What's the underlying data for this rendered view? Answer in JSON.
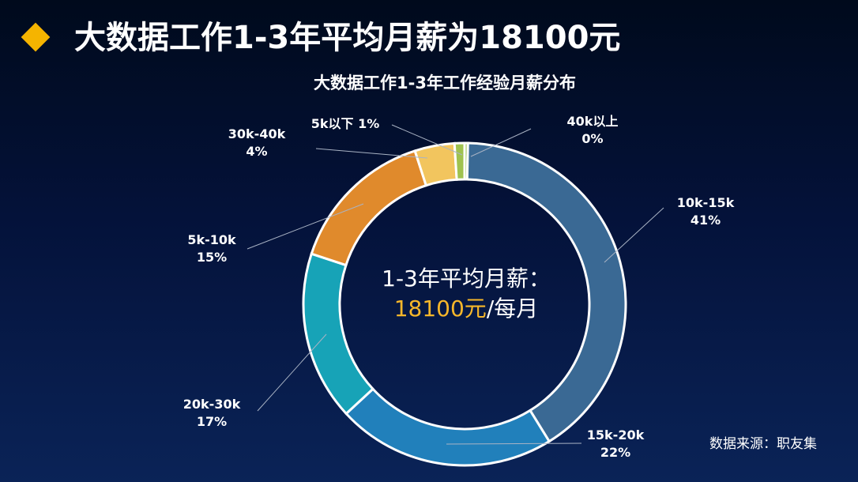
{
  "slide": {
    "title": "大数据工作1-3年平均月薪为18100元",
    "source": "数据来源：职友集"
  },
  "center": {
    "line1": "1-3年平均月薪：",
    "value": "18100元",
    "suffix": "/每月"
  },
  "colors": {
    "background": "#051540",
    "bullet": "#f5b400",
    "center_value": "#f7b72a"
  },
  "chart_data": {
    "type": "pie",
    "variant": "donut",
    "title": "大数据工作1-3年工作经验月薪分布",
    "legend": "none",
    "start_angle_deg": 0,
    "direction": "clockwise",
    "series": [
      {
        "label": "40k以上",
        "value": 0,
        "percent_label": "0%",
        "color": "#9fc24f"
      },
      {
        "label": "10k-15k",
        "value": 41,
        "percent_label": "41%",
        "color": "#3a6994"
      },
      {
        "label": "15k-20k",
        "value": 22,
        "percent_label": "22%",
        "color": "#2180bb"
      },
      {
        "label": "20k-30k",
        "value": 17,
        "percent_label": "17%",
        "color": "#17a3b7"
      },
      {
        "label": "5k-10k",
        "value": 15,
        "percent_label": "15%",
        "color": "#e08a2c"
      },
      {
        "label": "30k-40k",
        "value": 4,
        "percent_label": "4%",
        "color": "#f2c55e"
      },
      {
        "label": "5k以下",
        "value": 1,
        "percent_label": "1%",
        "color": "#9fc24f"
      }
    ],
    "label_layout": [
      "two-line-right",
      "two-line-right",
      "two-line-right",
      "two-line-left",
      "two-line-left",
      "two-line-left",
      "inline"
    ]
  }
}
